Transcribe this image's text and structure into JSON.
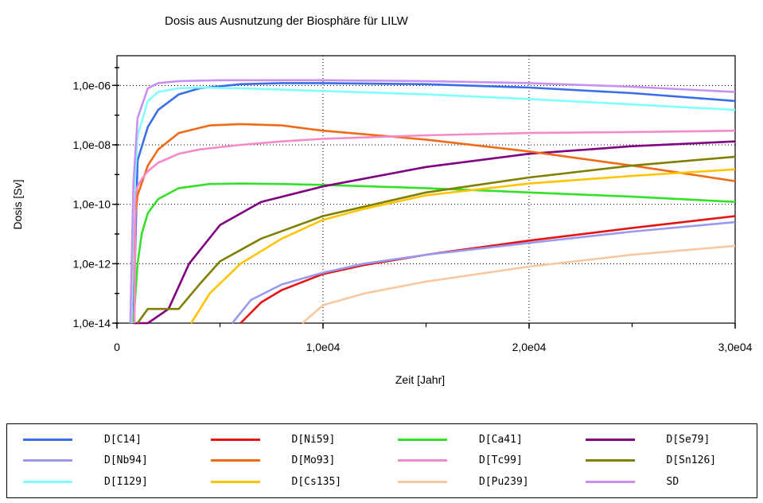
{
  "chart_data": {
    "type": "line",
    "title": "Dosis aus Ausnutzung der Biosphäre für LILW",
    "xlabel": "Zeit [Jahr]",
    "ylabel": "Dosis [Sv]",
    "xlim": [
      0,
      30000
    ],
    "ylim": [
      1e-14,
      1e-05
    ],
    "yscale": "log",
    "grid": "dotted",
    "legend_position": "bottom",
    "x_ticks": [
      0,
      10000,
      20000,
      30000
    ],
    "x_tick_labels": [
      "0",
      "1,0e04",
      "2,0e04",
      "3,0e04"
    ],
    "y_ticks": [
      1e-14,
      1e-12,
      1e-10,
      1e-08,
      1e-06
    ],
    "y_tick_labels": [
      "1,0e-14",
      "1,0e-12",
      "1,0e-10",
      "1,0e-08",
      "1,0e-06"
    ],
    "series": [
      {
        "name": "D[C14]",
        "color": "#3a6ee8",
        "x": [
          800,
          1000,
          1500,
          2000,
          3000,
          4000,
          6000,
          8000,
          10000,
          15000,
          20000,
          25000,
          30000
        ],
        "y": [
          1e-14,
          3e-09,
          4e-08,
          1.5e-07,
          5e-07,
          8e-07,
          1.1e-06,
          1.2e-06,
          1.2e-06,
          1.1e-06,
          8.5e-07,
          5.5e-07,
          3e-07
        ]
      },
      {
        "name": "D[Ni59]",
        "color": "#e41414",
        "x": [
          6000,
          7000,
          8000,
          10000,
          12000,
          15000,
          20000,
          25000,
          30000
        ],
        "y": [
          1e-14,
          5e-14,
          1.3e-13,
          4.5e-13,
          9e-13,
          2e-12,
          6e-12,
          1.6e-11,
          4e-11
        ]
      },
      {
        "name": "D[Ca41]",
        "color": "#33e02a",
        "x": [
          800,
          900,
          1000,
          1200,
          1500,
          2000,
          3000,
          4500,
          6000,
          8000,
          10000,
          15000,
          20000,
          25000,
          30000
        ],
        "y": [
          1e-14,
          1e-13,
          1e-12,
          1e-11,
          5e-11,
          1.5e-10,
          3.5e-10,
          4.8e-10,
          5e-10,
          4.8e-10,
          4.5e-10,
          3.5e-10,
          2.5e-10,
          1.8e-10,
          1.2e-10
        ]
      },
      {
        "name": "D[Se79]",
        "color": "#800080",
        "x": [
          800,
          1500,
          2500,
          3500,
          5000,
          7000,
          10000,
          15000,
          20000,
          25000,
          30000
        ],
        "y": [
          1e-14,
          1e-14,
          3e-14,
          1e-12,
          2e-11,
          1.2e-10,
          4e-10,
          1.8e-09,
          5e-09,
          9e-09,
          1.3e-08
        ]
      },
      {
        "name": "D[Nb94]",
        "color": "#9999ee",
        "x": [
          5600,
          6500,
          8000,
          10000,
          12000,
          15000,
          20000,
          25000,
          30000
        ],
        "y": [
          1e-14,
          6e-14,
          2e-13,
          5e-13,
          1e-12,
          2e-12,
          5e-12,
          1.2e-11,
          2.5e-11
        ]
      },
      {
        "name": "D[Mo93]",
        "color": "#f06a17",
        "x": [
          700,
          800,
          1000,
          1500,
          2000,
          3000,
          4500,
          6000,
          8000,
          10000,
          15000,
          20000,
          25000,
          30000
        ],
        "y": [
          1e-14,
          1e-11,
          2e-10,
          2e-09,
          7e-09,
          2.5e-08,
          4.5e-08,
          5e-08,
          4.5e-08,
          3e-08,
          1.5e-08,
          6e-09,
          2e-09,
          6e-10
        ]
      },
      {
        "name": "D[Tc99]",
        "color": "#f48ac8",
        "x": [
          850,
          900,
          1000,
          1200,
          1500,
          2000,
          3000,
          4000,
          6000,
          8000,
          10000,
          15000,
          20000,
          25000,
          30000
        ],
        "y": [
          1e-14,
          2e-10,
          4e-10,
          7e-10,
          1.3e-09,
          2.5e-09,
          5e-09,
          7e-09,
          1e-08,
          1.3e-08,
          1.6e-08,
          2.1e-08,
          2.5e-08,
          2.7e-08,
          3e-08
        ]
      },
      {
        "name": "D[Sn126]",
        "color": "#808000",
        "x": [
          1000,
          1500,
          2000,
          3000,
          4000,
          5000,
          7000,
          10000,
          15000,
          20000,
          25000,
          30000
        ],
        "y": [
          1e-14,
          3e-14,
          3e-14,
          3e-14,
          2e-13,
          1.2e-12,
          7e-12,
          4e-11,
          2.5e-10,
          8e-10,
          2e-09,
          4e-09
        ]
      },
      {
        "name": "D[I129]",
        "color": "#80ffff",
        "x": [
          700,
          800,
          1000,
          1500,
          2000,
          3000,
          4000,
          6000,
          10000,
          15000,
          20000,
          25000,
          30000
        ],
        "y": [
          1e-14,
          1e-10,
          2e-08,
          3e-07,
          6e-07,
          8e-07,
          8.5e-07,
          8e-07,
          6.5e-07,
          5e-07,
          3.5e-07,
          2.3e-07,
          1.5e-07
        ]
      },
      {
        "name": "D[Cs135]",
        "color": "#ffc400",
        "x": [
          3600,
          4500,
          6000,
          8000,
          10000,
          12000,
          15000,
          20000,
          25000,
          30000
        ],
        "y": [
          1e-14,
          1e-13,
          1e-12,
          7e-12,
          3e-11,
          7e-11,
          2e-10,
          5e-10,
          9e-10,
          1.5e-09
        ]
      },
      {
        "name": "D[Pu239]",
        "color": "#f8c8a0",
        "x": [
          9000,
          10000,
          12000,
          15000,
          20000,
          25000,
          30000
        ],
        "y": [
          1e-14,
          4e-14,
          1e-13,
          2.5e-13,
          8e-13,
          2e-12,
          4e-12
        ]
      },
      {
        "name": "SD",
        "color": "#c890f0",
        "x": [
          650,
          800,
          1000,
          1500,
          2000,
          3000,
          5000,
          8000,
          10000,
          15000,
          20000,
          25000,
          30000
        ],
        "y": [
          1e-14,
          5e-10,
          8e-08,
          8e-07,
          1.2e-06,
          1.4e-06,
          1.5e-06,
          1.5e-06,
          1.5e-06,
          1.4e-06,
          1.2e-06,
          9e-07,
          6e-07
        ]
      }
    ]
  }
}
